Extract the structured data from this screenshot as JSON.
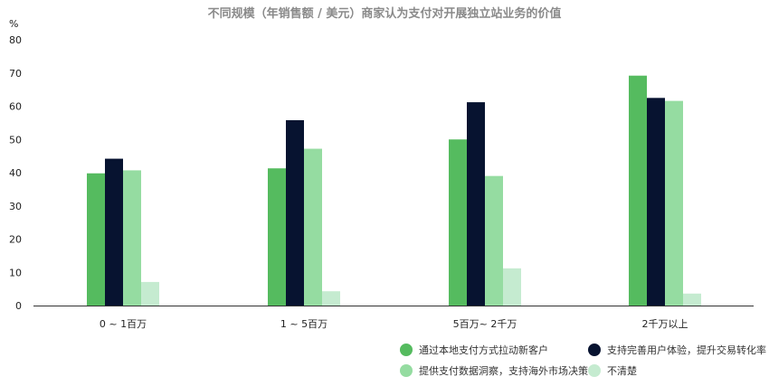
{
  "chart_data": {
    "type": "bar",
    "title": "不同规模（年销售额 / 美元）商家认为支付对开展独立站业务的价值",
    "ylabel": "%",
    "ylim": [
      0,
      80
    ],
    "yticks": [
      0,
      10,
      20,
      30,
      40,
      50,
      60,
      70,
      80
    ],
    "categories": [
      "0 ~ 1百万",
      "1 ~ 5百万",
      "5百万~ 2千万",
      "2千万以上"
    ],
    "series": [
      {
        "name": "通过本地支付方式拉动新客户",
        "color": "#55bb5f",
        "values": [
          39.8,
          41.3,
          50.0,
          69.2
        ]
      },
      {
        "name": "支持完善用户体验，提升交易转化率",
        "color": "#071330",
        "values": [
          44.2,
          55.8,
          61.2,
          62.5
        ]
      },
      {
        "name": "提供支付数据洞察，支持海外市场决策",
        "color": "#95dca1",
        "values": [
          40.7,
          47.2,
          39.0,
          61.6
        ]
      },
      {
        "name": "不清楚",
        "color": "#c5ebd0",
        "values": [
          7.1,
          4.3,
          11.2,
          3.6
        ]
      }
    ],
    "grid": false,
    "legend_position": "bottom-right"
  }
}
